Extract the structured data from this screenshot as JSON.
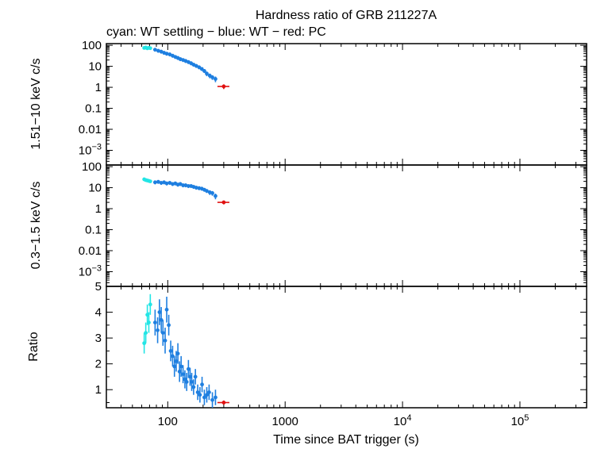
{
  "chart_data": {
    "type": "scatter",
    "title": "Hardness ratio of GRB 211227A",
    "subtitle": "cyan: WT settling − blue: WT − red: PC",
    "xlabel": "Time since BAT trigger (s)",
    "xscale": "log",
    "xlim": [
      30,
      370000
    ],
    "x_ticks": [
      {
        "value": 100,
        "label": "100"
      },
      {
        "value": 1000,
        "label": "1000"
      },
      {
        "value": 10000,
        "base": "10",
        "exp": "4"
      },
      {
        "value": 100000,
        "base": "10",
        "exp": "5"
      }
    ],
    "colors": {
      "wt_settling": "#22e5e5",
      "wt": "#1e7fe0",
      "pc": "#e01010"
    },
    "panels": [
      {
        "name": "hard",
        "ylabel": "1.51−10 keV c/s",
        "yscale": "log",
        "ylim": [
          0.0002,
          120
        ],
        "y_ticks": [
          {
            "value": 100,
            "label": "100"
          },
          {
            "value": 10,
            "label": "10"
          },
          {
            "value": 1,
            "label": "1"
          },
          {
            "value": 0.1,
            "label": "0.1"
          },
          {
            "value": 0.01,
            "label": "0.01"
          },
          {
            "value": 0.001,
            "base": "10",
            "exp": "−3"
          }
        ],
        "series": [
          {
            "group": "wt_settling",
            "x": [
              63,
              65,
              67,
              69,
              71
            ],
            "y": [
              75,
              78,
              72,
              76,
              73
            ],
            "xerr": [
              1,
              1,
              1,
              1,
              1
            ],
            "yerr_frac": [
              0.15,
              0.15,
              0.15,
              0.15,
              0.15
            ]
          },
          {
            "group": "wt",
            "x": [
              78,
              83,
              88,
              93,
              98,
              104,
              110,
              116,
              122,
              128,
              135,
              142,
              150,
              158,
              166,
              175,
              185,
              195,
              205,
              215,
              228,
              240,
              255
            ],
            "y": [
              62,
              55,
              50,
              44,
              40,
              37,
              32,
              28,
              25,
              22,
              20,
              18,
              16,
              14,
              12,
              10.5,
              9,
              7.5,
              6,
              4.5,
              3.6,
              3.0,
              2.5
            ],
            "xerr": [
              2,
              2,
              2,
              2,
              2,
              3,
              3,
              3,
              3,
              3,
              3,
              3,
              4,
              4,
              4,
              4,
              5,
              5,
              5,
              5,
              6,
              6,
              7
            ],
            "yerr_frac": [
              0.2,
              0.2,
              0.2,
              0.2,
              0.2,
              0.2,
              0.2,
              0.2,
              0.2,
              0.2,
              0.2,
              0.2,
              0.2,
              0.2,
              0.2,
              0.2,
              0.2,
              0.2,
              0.2,
              0.25,
              0.25,
              0.25,
              0.3
            ]
          },
          {
            "group": "pc",
            "x": [
              300
            ],
            "y": [
              1.1
            ],
            "xerr": [
              35
            ],
            "yerr_frac": [
              0.25
            ]
          }
        ]
      },
      {
        "name": "soft",
        "ylabel": "0.3−1.5 keV c/s",
        "yscale": "log",
        "ylim": [
          0.0002,
          120
        ],
        "y_ticks": [
          {
            "value": 100,
            "label": "100"
          },
          {
            "value": 10,
            "label": "10"
          },
          {
            "value": 1,
            "label": "1"
          },
          {
            "value": 0.1,
            "label": "0.1"
          },
          {
            "value": 0.01,
            "label": "0.01"
          },
          {
            "value": 0.001,
            "base": "10",
            "exp": "−3"
          }
        ],
        "series": [
          {
            "group": "wt_settling",
            "x": [
              63,
              65,
              67,
              69,
              71
            ],
            "y": [
              25,
              23,
              22,
              21,
              20
            ],
            "xerr": [
              1,
              1,
              1,
              1,
              1
            ],
            "yerr_frac": [
              0.15,
              0.15,
              0.15,
              0.15,
              0.15
            ]
          },
          {
            "group": "wt",
            "x": [
              78,
              83,
              88,
              93,
              98,
              104,
              110,
              116,
              122,
              128,
              135,
              142,
              150,
              158,
              166,
              175,
              185,
              195,
              205,
              215,
              228,
              240,
              255
            ],
            "y": [
              18,
              19,
              17,
              18,
              16,
              17,
              15,
              16,
              14,
              15,
              13,
              13,
              12,
              12,
              11,
              10,
              9.5,
              9,
              8,
              7,
              6,
              5.5,
              4
            ],
            "xerr": [
              2,
              2,
              2,
              2,
              2,
              3,
              3,
              3,
              3,
              3,
              3,
              3,
              4,
              4,
              4,
              4,
              5,
              5,
              5,
              5,
              6,
              6,
              7
            ],
            "yerr_frac": [
              0.2,
              0.2,
              0.2,
              0.2,
              0.2,
              0.2,
              0.2,
              0.2,
              0.2,
              0.2,
              0.2,
              0.2,
              0.2,
              0.2,
              0.2,
              0.2,
              0.2,
              0.2,
              0.2,
              0.2,
              0.25,
              0.25,
              0.3
            ]
          },
          {
            "group": "pc",
            "x": [
              300
            ],
            "y": [
              2.0
            ],
            "xerr": [
              35
            ],
            "yerr_frac": [
              0.2
            ]
          }
        ]
      },
      {
        "name": "ratio",
        "ylabel": "Ratio",
        "yscale": "linear",
        "ylim": [
          0.3,
          5
        ],
        "y_ticks": [
          {
            "value": 1,
            "label": "1"
          },
          {
            "value": 2,
            "label": "2"
          },
          {
            "value": 3,
            "label": "3"
          },
          {
            "value": 4,
            "label": "4"
          },
          {
            "value": 5,
            "label": "5"
          }
        ],
        "series": [
          {
            "group": "wt_settling",
            "x": [
              63,
              65,
              67,
              69,
              71
            ],
            "y": [
              2.8,
              3.2,
              3.9,
              3.6,
              4.3
            ],
            "xerr": [
              1,
              1,
              1,
              1,
              1
            ],
            "yerr": [
              0.4,
              0.4,
              0.4,
              0.4,
              0.4
            ]
          },
          {
            "group": "wt",
            "x": [
              78,
              82,
              85,
              88,
              91,
              95,
              98,
              102,
              106,
              110,
              114,
              118,
              122,
              126,
              130,
              135,
              140,
              145,
              150,
              155,
              160,
              166,
              172,
              180,
              188,
              196,
              205,
              215,
              225,
              240,
              255
            ],
            "y": [
              3.6,
              3.3,
              4.0,
              3.7,
              3.2,
              2.9,
              4.1,
              3.5,
              2.5,
              2.3,
              1.9,
              2.1,
              2.4,
              1.7,
              1.9,
              1.6,
              1.4,
              1.3,
              1.8,
              1.5,
              1.3,
              1.1,
              1.5,
              0.9,
              0.8,
              1.2,
              0.7,
              0.8,
              0.9,
              0.6,
              0.7
            ],
            "xerr": [
              2,
              2,
              2,
              2,
              2,
              2,
              2,
              2,
              2,
              3,
              3,
              3,
              3,
              3,
              3,
              3,
              3,
              3,
              4,
              4,
              4,
              4,
              4,
              4,
              4,
              5,
              5,
              5,
              6,
              6,
              7
            ],
            "yerr": [
              0.5,
              0.5,
              0.5,
              0.5,
              0.5,
              0.5,
              0.5,
              0.4,
              0.4,
              0.4,
              0.4,
              0.4,
              0.4,
              0.4,
              0.4,
              0.35,
              0.35,
              0.35,
              0.35,
              0.35,
              0.35,
              0.3,
              0.3,
              0.3,
              0.3,
              0.3,
              0.3,
              0.3,
              0.3,
              0.3,
              0.3
            ]
          },
          {
            "group": "pc",
            "x": [
              300
            ],
            "y": [
              0.5
            ],
            "xerr": [
              35
            ],
            "yerr": [
              0.08
            ]
          }
        ]
      }
    ]
  }
}
